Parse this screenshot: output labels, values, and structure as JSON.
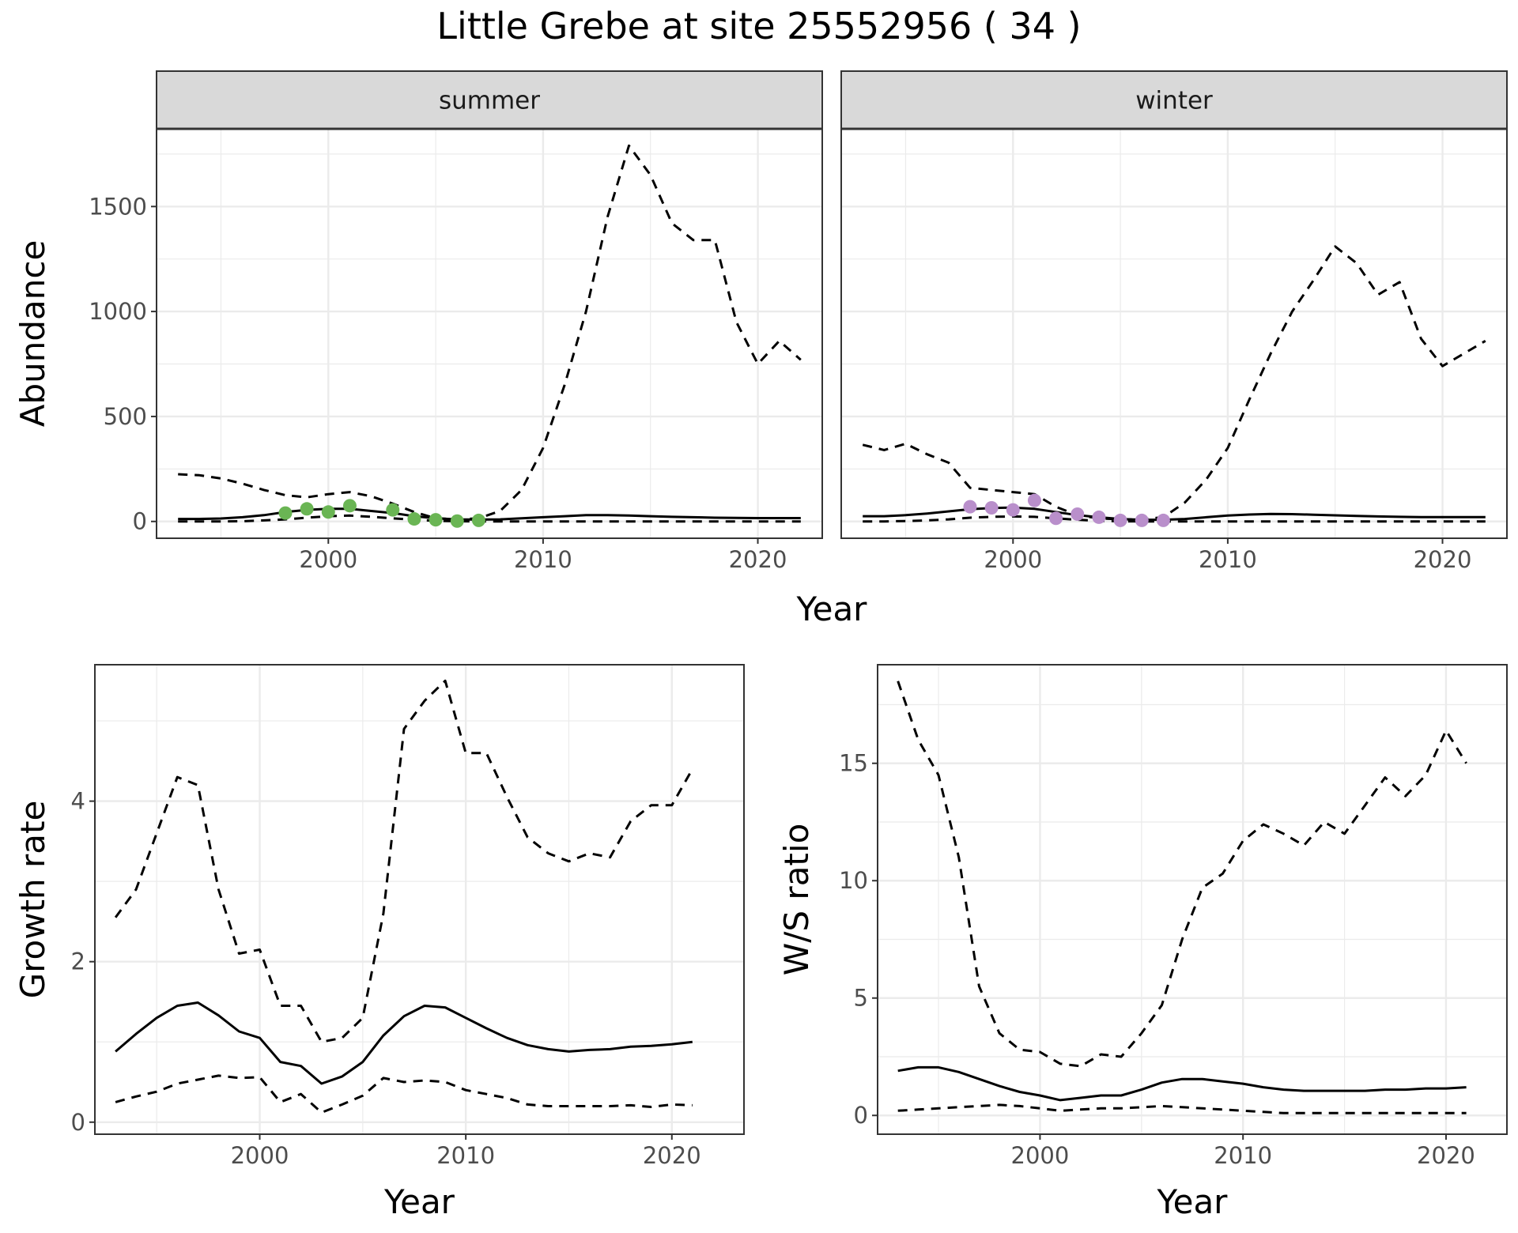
{
  "title": "Little Grebe at site 25552956 ( 34 )",
  "colors": {
    "summer_points": "#6ab554",
    "winter_points": "#b98fcb",
    "strip": "#d9d9d9",
    "grid": "#ebebeb"
  },
  "chart_data": [
    {
      "type": "line",
      "panel": "summer",
      "ylabel": "Abundance",
      "xlabel": "Year",
      "shared_xlabel": "Year",
      "xlim": [
        1992,
        2023
      ],
      "ylim": [
        -80,
        1870
      ],
      "xticks": [
        2000,
        2010,
        2020
      ],
      "yticks": [
        0,
        500,
        1000,
        1500
      ],
      "grid": true,
      "series": [
        {
          "role": "estimate",
          "style": "solid",
          "x": [
            1993,
            1994,
            1995,
            1996,
            1997,
            1998,
            1999,
            2000,
            2001,
            2002,
            2003,
            2004,
            2005,
            2006,
            2007,
            2008,
            2009,
            2010,
            2011,
            2012,
            2013,
            2014,
            2015,
            2016,
            2017,
            2018,
            2019,
            2020,
            2021,
            2022
          ],
          "y": [
            12,
            12,
            14,
            20,
            30,
            45,
            55,
            60,
            60,
            50,
            40,
            25,
            15,
            10,
            9,
            10,
            15,
            20,
            25,
            30,
            30,
            28,
            25,
            22,
            20,
            18,
            17,
            16,
            16,
            16
          ]
        },
        {
          "role": "upper",
          "style": "dashed",
          "x": [
            1993,
            1994,
            1995,
            1996,
            1997,
            1998,
            1999,
            2000,
            2001,
            2002,
            2003,
            2004,
            2005,
            2006,
            2007,
            2008,
            2009,
            2010,
            2011,
            2012,
            2013,
            2014,
            2015,
            2016,
            2017,
            2018,
            2019,
            2020,
            2021,
            2022
          ],
          "y": [
            225,
            220,
            205,
            180,
            150,
            125,
            115,
            130,
            140,
            120,
            85,
            45,
            15,
            10,
            15,
            50,
            150,
            350,
            650,
            1000,
            1450,
            1790,
            1650,
            1420,
            1340,
            1340,
            950,
            750,
            860,
            770
          ]
        },
        {
          "role": "lower",
          "style": "dashed",
          "x": [
            1993,
            1994,
            1995,
            1996,
            1997,
            1998,
            1999,
            2000,
            2001,
            2002,
            2003,
            2004,
            2005,
            2006,
            2007,
            2008,
            2009,
            2010,
            2011,
            2012,
            2013,
            2014,
            2015,
            2016,
            2017,
            2018,
            2019,
            2020,
            2021,
            2022
          ],
          "y": [
            0,
            0,
            0,
            1,
            5,
            10,
            18,
            25,
            28,
            22,
            15,
            8,
            3,
            1,
            0,
            0,
            0,
            0,
            0,
            0,
            0,
            0,
            0,
            0,
            0,
            0,
            0,
            0,
            0,
            0
          ]
        },
        {
          "role": "observed",
          "style": "points",
          "color": "#6ab554",
          "x": [
            1998,
            1999,
            2000,
            2001,
            2003,
            2004,
            2005,
            2006,
            2007
          ],
          "y": [
            40,
            60,
            45,
            75,
            55,
            12,
            8,
            2,
            5
          ]
        }
      ]
    },
    {
      "type": "line",
      "panel": "winter",
      "xlabel": "Year",
      "xlim": [
        1992,
        2023
      ],
      "ylim": [
        -80,
        1870
      ],
      "xticks": [
        2000,
        2010,
        2020
      ],
      "grid": true,
      "series": [
        {
          "role": "estimate",
          "style": "solid",
          "x": [
            1993,
            1994,
            1995,
            1996,
            1997,
            1998,
            1999,
            2000,
            2001,
            2002,
            2003,
            2004,
            2005,
            2006,
            2007,
            2008,
            2009,
            2010,
            2011,
            2012,
            2013,
            2014,
            2015,
            2016,
            2017,
            2018,
            2019,
            2020,
            2021,
            2022
          ],
          "y": [
            25,
            25,
            30,
            38,
            48,
            58,
            64,
            66,
            60,
            45,
            30,
            20,
            12,
            8,
            8,
            12,
            20,
            28,
            33,
            36,
            35,
            32,
            29,
            26,
            24,
            22,
            21,
            21,
            21,
            21
          ]
        },
        {
          "role": "upper",
          "style": "dashed",
          "x": [
            1993,
            1994,
            1995,
            1996,
            1997,
            1998,
            1999,
            2000,
            2001,
            2002,
            2003,
            2004,
            2005,
            2006,
            2007,
            2008,
            2009,
            2010,
            2011,
            2012,
            2013,
            2014,
            2015,
            2016,
            2017,
            2018,
            2019,
            2020,
            2021,
            2022
          ],
          "y": [
            365,
            340,
            370,
            320,
            280,
            160,
            150,
            140,
            130,
            70,
            30,
            15,
            10,
            10,
            20,
            90,
            200,
            350,
            580,
            800,
            1000,
            1150,
            1310,
            1230,
            1080,
            1140,
            870,
            740,
            800,
            860
          ]
        },
        {
          "role": "lower",
          "style": "dashed",
          "x": [
            1993,
            1994,
            1995,
            1996,
            1997,
            1998,
            1999,
            2000,
            2001,
            2002,
            2003,
            2004,
            2005,
            2006,
            2007,
            2008,
            2009,
            2010,
            2011,
            2012,
            2013,
            2014,
            2015,
            2016,
            2017,
            2018,
            2019,
            2020,
            2021,
            2022
          ],
          "y": [
            0,
            0,
            2,
            5,
            10,
            18,
            22,
            24,
            22,
            15,
            8,
            3,
            1,
            0,
            0,
            0,
            0,
            0,
            0,
            0,
            0,
            0,
            0,
            0,
            0,
            0,
            0,
            0,
            0,
            0
          ]
        },
        {
          "role": "observed",
          "style": "points",
          "color": "#b98fcb",
          "x": [
            1998,
            1999,
            2000,
            2001,
            2002,
            2003,
            2004,
            2005,
            2006,
            2007
          ],
          "y": [
            70,
            65,
            55,
            100,
            15,
            35,
            20,
            5,
            5,
            5
          ]
        }
      ]
    },
    {
      "type": "line",
      "panel": "growth",
      "xlabel": "Year",
      "ylabel": "Growth rate",
      "xlim": [
        1992,
        2023.5
      ],
      "ylim": [
        -0.15,
        5.7
      ],
      "xticks": [
        2000,
        2010,
        2020
      ],
      "yticks": [
        0,
        2,
        4
      ],
      "grid": true,
      "series": [
        {
          "role": "estimate",
          "style": "solid",
          "x": [
            1993,
            1994,
            1995,
            1996,
            1997,
            1998,
            1999,
            2000,
            2001,
            2002,
            2003,
            2004,
            2005,
            2006,
            2007,
            2008,
            2009,
            2010,
            2011,
            2012,
            2013,
            2014,
            2015,
            2016,
            2017,
            2018,
            2019,
            2020,
            2021
          ],
          "y": [
            0.88,
            1.1,
            1.3,
            1.45,
            1.49,
            1.33,
            1.13,
            1.05,
            0.75,
            0.7,
            0.48,
            0.57,
            0.75,
            1.08,
            1.32,
            1.45,
            1.43,
            1.3,
            1.17,
            1.05,
            0.96,
            0.91,
            0.88,
            0.9,
            0.91,
            0.94,
            0.95,
            0.97,
            1.0
          ]
        },
        {
          "role": "upper",
          "style": "dashed",
          "x": [
            1993,
            1994,
            1995,
            1996,
            1997,
            1998,
            1999,
            2000,
            2001,
            2002,
            2003,
            2004,
            2005,
            2006,
            2007,
            2008,
            2009,
            2010,
            2011,
            2012,
            2013,
            2014,
            2015,
            2016,
            2017,
            2018,
            2019,
            2020,
            2021
          ],
          "y": [
            2.55,
            2.9,
            3.6,
            4.3,
            4.2,
            2.9,
            2.1,
            2.15,
            1.45,
            1.45,
            1.0,
            1.05,
            1.3,
            2.6,
            4.9,
            5.25,
            5.5,
            4.6,
            4.6,
            4.05,
            3.55,
            3.35,
            3.25,
            3.35,
            3.3,
            3.75,
            3.95,
            3.95,
            4.4
          ]
        },
        {
          "role": "lower",
          "style": "dashed",
          "x": [
            1993,
            1994,
            1995,
            1996,
            1997,
            1998,
            1999,
            2000,
            2001,
            2002,
            2003,
            2004,
            2005,
            2006,
            2007,
            2008,
            2009,
            2010,
            2011,
            2012,
            2013,
            2014,
            2015,
            2016,
            2017,
            2018,
            2019,
            2020,
            2021
          ],
          "y": [
            0.25,
            0.32,
            0.38,
            0.48,
            0.53,
            0.58,
            0.55,
            0.56,
            0.25,
            0.35,
            0.12,
            0.22,
            0.33,
            0.55,
            0.5,
            0.52,
            0.5,
            0.4,
            0.35,
            0.3,
            0.22,
            0.2,
            0.2,
            0.2,
            0.2,
            0.21,
            0.19,
            0.22,
            0.21
          ]
        }
      ]
    },
    {
      "type": "line",
      "panel": "ratio",
      "xlabel": "Year",
      "ylabel": "W/S ratio",
      "xlim": [
        1992,
        2023
      ],
      "ylim": [
        -0.8,
        19.2
      ],
      "xticks": [
        2000,
        2010,
        2020
      ],
      "yticks": [
        0,
        5,
        10,
        15
      ],
      "grid": true,
      "series": [
        {
          "role": "estimate",
          "style": "solid",
          "x": [
            1993,
            1994,
            1995,
            1996,
            1997,
            1998,
            1999,
            2000,
            2001,
            2002,
            2003,
            2004,
            2005,
            2006,
            2007,
            2008,
            2009,
            2010,
            2011,
            2012,
            2013,
            2014,
            2015,
            2016,
            2017,
            2018,
            2019,
            2020,
            2021
          ],
          "y": [
            1.9,
            2.05,
            2.05,
            1.85,
            1.55,
            1.25,
            1.0,
            0.85,
            0.65,
            0.75,
            0.85,
            0.85,
            1.1,
            1.4,
            1.55,
            1.55,
            1.45,
            1.35,
            1.2,
            1.1,
            1.05,
            1.05,
            1.05,
            1.05,
            1.1,
            1.1,
            1.15,
            1.15,
            1.2
          ]
        },
        {
          "role": "upper",
          "style": "dashed",
          "x": [
            1993,
            1994,
            1995,
            1996,
            1997,
            1998,
            1999,
            2000,
            2001,
            2002,
            2003,
            2004,
            2005,
            2006,
            2007,
            2008,
            2009,
            2010,
            2011,
            2012,
            2013,
            2014,
            2015,
            2016,
            2017,
            2018,
            2019,
            2020,
            2021
          ],
          "y": [
            18.5,
            16.0,
            14.5,
            11.0,
            5.5,
            3.5,
            2.8,
            2.7,
            2.2,
            2.1,
            2.6,
            2.5,
            3.5,
            4.7,
            7.5,
            9.7,
            10.3,
            11.7,
            12.4,
            12.0,
            11.5,
            12.5,
            12.0,
            13.2,
            14.4,
            13.6,
            14.5,
            16.4,
            15.0
          ]
        },
        {
          "role": "lower",
          "style": "dashed",
          "x": [
            1993,
            1994,
            1995,
            1996,
            1997,
            1998,
            1999,
            2000,
            2001,
            2002,
            2003,
            2004,
            2005,
            2006,
            2007,
            2008,
            2009,
            2010,
            2011,
            2012,
            2013,
            2014,
            2015,
            2016,
            2017,
            2018,
            2019,
            2020,
            2021
          ],
          "y": [
            0.2,
            0.25,
            0.3,
            0.35,
            0.4,
            0.45,
            0.4,
            0.3,
            0.2,
            0.25,
            0.3,
            0.3,
            0.35,
            0.4,
            0.35,
            0.3,
            0.25,
            0.2,
            0.15,
            0.1,
            0.1,
            0.1,
            0.1,
            0.1,
            0.1,
            0.1,
            0.1,
            0.1,
            0.1
          ]
        }
      ]
    }
  ]
}
